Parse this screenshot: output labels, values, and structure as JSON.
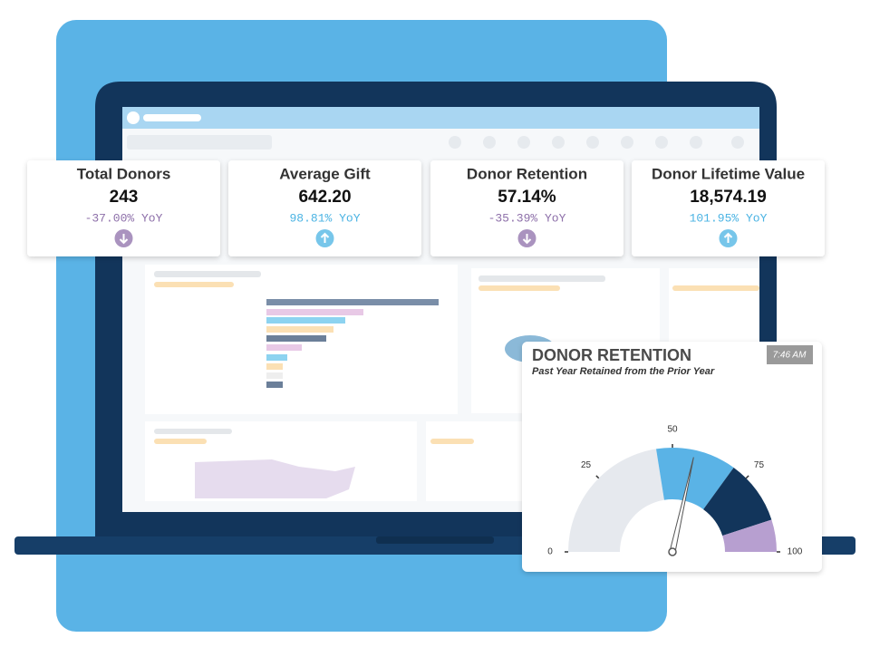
{
  "kpis": [
    {
      "title": "Total Donors",
      "value": "243",
      "change": "-37.00% YoY",
      "trend": "down"
    },
    {
      "title": "Average Gift",
      "value": "642.20",
      "change": "98.81% YoY",
      "trend": "up"
    },
    {
      "title": "Donor Retention",
      "value": "57.14%",
      "change": "-35.39% YoY",
      "trend": "down"
    },
    {
      "title": "Donor Lifetime Value",
      "value": "18,574.19",
      "change": "101.95% YoY",
      "trend": "up"
    }
  ],
  "trend_colors": {
    "up": "#4ab3e3",
    "down": "#8d6fa9"
  },
  "gauge": {
    "type": "gauge",
    "title": "DONOR RETENTION",
    "subtitle": "Past Year Retained from the Prior Year",
    "time": "7:46 AM",
    "range": [
      0,
      100
    ],
    "ticks": [
      0,
      25,
      50,
      75,
      100
    ],
    "bands": [
      {
        "from": 0,
        "to": 45,
        "color": "#e6e9ee"
      },
      {
        "from": 45,
        "to": 70,
        "color": "#5ab3e6"
      },
      {
        "from": 70,
        "to": 90,
        "color": "#12355b"
      },
      {
        "from": 90,
        "to": 100,
        "color": "#b79fd0"
      }
    ],
    "value": 57
  }
}
